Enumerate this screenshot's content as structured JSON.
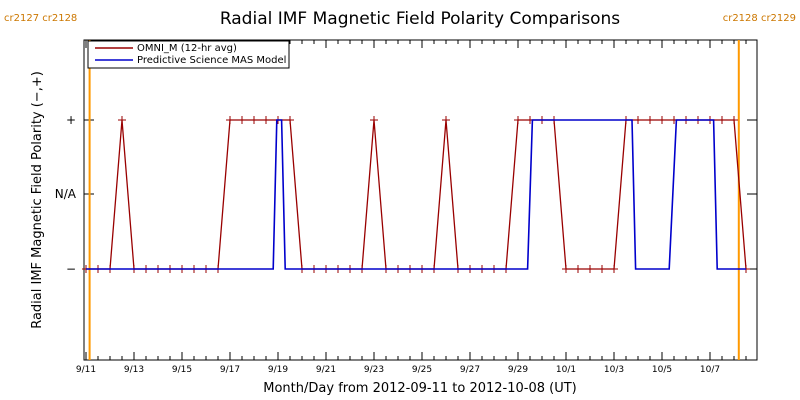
{
  "chart_data": {
    "type": "line",
    "title": "Radial IMF Magnetic Field Polarity Comparisons",
    "xlabel": "Month/Day from 2012-09-11 to 2012-10-08 (UT)",
    "ylabel": "Radial IMF Magnetic Field Polarity (−,+)",
    "x_tick_labels": [
      "9/11",
      "9/13",
      "9/15",
      "9/17",
      "9/19",
      "9/21",
      "9/23",
      "9/25",
      "9/27",
      "9/29",
      "10/1",
      "10/3",
      "10/5",
      "10/7"
    ],
    "y_categories": [
      "−",
      "N/A",
      "+"
    ],
    "xlim_days": [
      0,
      27.5
    ],
    "grid": false,
    "legend_position": "top-left",
    "carrington_markers": [
      {
        "day": 0.15,
        "label": "cr2127 cr2128"
      },
      {
        "day": 27.2,
        "label": "cr2128 cr2129"
      }
    ],
    "series": [
      {
        "name": "OMNI_M (12-hr avg)",
        "color": "#990000",
        "values": [
          [
            0.0,
            -1
          ],
          [
            0.5,
            -1
          ],
          [
            1.0,
            -1
          ],
          [
            1.5,
            1
          ],
          [
            2.0,
            -1
          ],
          [
            2.5,
            -1
          ],
          [
            3.0,
            -1
          ],
          [
            3.5,
            -1
          ],
          [
            4.0,
            -1
          ],
          [
            4.5,
            -1
          ],
          [
            5.0,
            -1
          ],
          [
            5.5,
            -1
          ],
          [
            6.0,
            1
          ],
          [
            6.5,
            1
          ],
          [
            7.0,
            1
          ],
          [
            7.5,
            1
          ],
          [
            8.0,
            1
          ],
          [
            8.5,
            1
          ],
          [
            9.0,
            -1
          ],
          [
            9.5,
            -1
          ],
          [
            10.0,
            -1
          ],
          [
            10.5,
            -1
          ],
          [
            11.0,
            -1
          ],
          [
            11.5,
            -1
          ],
          [
            12.0,
            1
          ],
          [
            12.5,
            -1
          ],
          [
            13.0,
            -1
          ],
          [
            13.5,
            -1
          ],
          [
            14.0,
            -1
          ],
          [
            14.5,
            -1
          ],
          [
            15.0,
            1
          ],
          [
            15.5,
            -1
          ],
          [
            16.0,
            -1
          ],
          [
            16.5,
            -1
          ],
          [
            17.0,
            -1
          ],
          [
            17.5,
            -1
          ],
          [
            18.0,
            1
          ],
          [
            18.5,
            1
          ],
          [
            19.0,
            1
          ],
          [
            19.5,
            1
          ],
          [
            20.0,
            -1
          ],
          [
            20.5,
            -1
          ],
          [
            21.0,
            -1
          ],
          [
            21.5,
            -1
          ],
          [
            22.0,
            -1
          ],
          [
            22.5,
            1
          ],
          [
            23.0,
            1
          ],
          [
            23.5,
            1
          ],
          [
            24.0,
            1
          ],
          [
            24.5,
            1
          ],
          [
            25.0,
            1
          ],
          [
            25.5,
            1
          ],
          [
            26.0,
            1
          ],
          [
            26.5,
            1
          ],
          [
            27.0,
            1
          ],
          [
            27.5,
            -1
          ]
        ]
      },
      {
        "name": "Predictive Science MAS Model",
        "color": "#0000cc",
        "values": [
          [
            0.0,
            -1
          ],
          [
            7.8,
            -1
          ],
          [
            7.95,
            1
          ],
          [
            8.15,
            1
          ],
          [
            8.3,
            -1
          ],
          [
            18.4,
            -1
          ],
          [
            18.6,
            1
          ],
          [
            22.75,
            1
          ],
          [
            22.9,
            -1
          ],
          [
            24.3,
            -1
          ],
          [
            24.6,
            1
          ],
          [
            26.15,
            1
          ],
          [
            26.3,
            -1
          ],
          [
            27.5,
            -1
          ]
        ]
      }
    ]
  }
}
